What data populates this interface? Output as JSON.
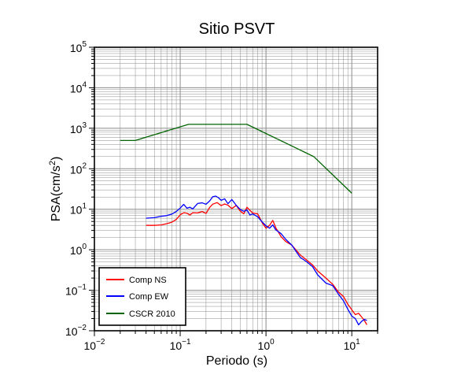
{
  "chart_data": {
    "type": "line",
    "title": "Sitio PSVT",
    "xlabel": "Periodo (s)",
    "ylabel_main": "PSA(cm/s",
    "ylabel_sup": "2",
    "ylabel_close": ")",
    "x_scale": "log",
    "y_scale": "log",
    "xlim": [
      0.01,
      20
    ],
    "ylim": [
      0.01,
      100000
    ],
    "grid": true,
    "legend_position": "bottom-left",
    "x_ticks": [
      {
        "value": 0.01,
        "base": "10",
        "exp": "−2"
      },
      {
        "value": 0.1,
        "base": "10",
        "exp": "−1"
      },
      {
        "value": 1,
        "base": "10",
        "exp": "0"
      },
      {
        "value": 10,
        "base": "10",
        "exp": "1"
      }
    ],
    "y_ticks": [
      {
        "value": 0.01,
        "base": "10",
        "exp": "−2"
      },
      {
        "value": 0.1,
        "base": "10",
        "exp": "−1"
      },
      {
        "value": 1,
        "base": "10",
        "exp": "0"
      },
      {
        "value": 10,
        "base": "10",
        "exp": "1"
      },
      {
        "value": 100,
        "base": "10",
        "exp": "2"
      },
      {
        "value": 1000,
        "base": "10",
        "exp": "3"
      },
      {
        "value": 10000,
        "base": "10",
        "exp": "4"
      },
      {
        "value": 100000,
        "base": "10",
        "exp": "5"
      }
    ],
    "series": [
      {
        "name": "Comp NS",
        "color": "#ff0000",
        "points": [
          [
            0.04,
            4.0
          ],
          [
            0.05,
            4.0
          ],
          [
            0.06,
            4.1
          ],
          [
            0.07,
            4.4
          ],
          [
            0.08,
            4.8
          ],
          [
            0.09,
            5.6
          ],
          [
            0.1,
            7.3
          ],
          [
            0.11,
            8.2
          ],
          [
            0.12,
            8.0
          ],
          [
            0.13,
            7.2
          ],
          [
            0.14,
            8.2
          ],
          [
            0.16,
            8.1
          ],
          [
            0.18,
            8.8
          ],
          [
            0.2,
            7.9
          ],
          [
            0.22,
            11.0
          ],
          [
            0.24,
            13.4
          ],
          [
            0.27,
            14.6
          ],
          [
            0.3,
            12.3
          ],
          [
            0.33,
            13.5
          ],
          [
            0.36,
            12.6
          ],
          [
            0.4,
            10.4
          ],
          [
            0.45,
            12.4
          ],
          [
            0.5,
            9.1
          ],
          [
            0.55,
            7.7
          ],
          [
            0.6,
            11.2
          ],
          [
            0.65,
            9.4
          ],
          [
            0.7,
            8.1
          ],
          [
            0.8,
            7.7
          ],
          [
            0.9,
            4.7
          ],
          [
            1.0,
            3.4
          ],
          [
            1.1,
            4.0
          ],
          [
            1.2,
            5.3
          ],
          [
            1.3,
            3.5
          ],
          [
            1.5,
            2.1
          ],
          [
            1.7,
            1.6
          ],
          [
            2.0,
            1.3
          ],
          [
            2.5,
            0.75
          ],
          [
            3.0,
            0.55
          ],
          [
            3.5,
            0.42
          ],
          [
            4.0,
            0.3
          ],
          [
            5.0,
            0.2
          ],
          [
            6.0,
            0.14
          ],
          [
            7.0,
            0.09
          ],
          [
            8.0,
            0.07
          ],
          [
            9.0,
            0.045
          ],
          [
            10.0,
            0.033
          ],
          [
            11.0,
            0.025
          ],
          [
            12.0,
            0.027
          ],
          [
            13.0,
            0.022
          ],
          [
            14.0,
            0.018
          ],
          [
            15.0,
            0.014
          ]
        ]
      },
      {
        "name": "Comp EW",
        "color": "#0000ff",
        "points": [
          [
            0.04,
            6.0
          ],
          [
            0.05,
            6.2
          ],
          [
            0.06,
            6.7
          ],
          [
            0.07,
            7.0
          ],
          [
            0.08,
            7.6
          ],
          [
            0.09,
            8.8
          ],
          [
            0.1,
            10.7
          ],
          [
            0.11,
            13.2
          ],
          [
            0.12,
            10.6
          ],
          [
            0.13,
            11.2
          ],
          [
            0.14,
            10.2
          ],
          [
            0.16,
            13.9
          ],
          [
            0.18,
            14.4
          ],
          [
            0.2,
            13.3
          ],
          [
            0.22,
            16.0
          ],
          [
            0.24,
            20.4
          ],
          [
            0.26,
            21.1
          ],
          [
            0.28,
            19.1
          ],
          [
            0.3,
            16.6
          ],
          [
            0.33,
            18.1
          ],
          [
            0.36,
            13.7
          ],
          [
            0.4,
            17.4
          ],
          [
            0.45,
            12.5
          ],
          [
            0.5,
            9.9
          ],
          [
            0.55,
            8.9
          ],
          [
            0.6,
            9.6
          ],
          [
            0.65,
            7.2
          ],
          [
            0.7,
            7.7
          ],
          [
            0.8,
            6.5
          ],
          [
            0.9,
            4.9
          ],
          [
            1.0,
            3.9
          ],
          [
            1.1,
            3.4
          ],
          [
            1.2,
            4.1
          ],
          [
            1.3,
            3.1
          ],
          [
            1.5,
            2.5
          ],
          [
            1.7,
            1.8
          ],
          [
            2.0,
            1.3
          ],
          [
            2.5,
            0.65
          ],
          [
            3.0,
            0.5
          ],
          [
            3.5,
            0.38
          ],
          [
            4.0,
            0.24
          ],
          [
            5.0,
            0.15
          ],
          [
            6.0,
            0.13
          ],
          [
            7.0,
            0.08
          ],
          [
            8.0,
            0.055
          ],
          [
            9.0,
            0.034
          ],
          [
            10.0,
            0.023
          ],
          [
            11.0,
            0.02
          ],
          [
            12.0,
            0.014
          ],
          [
            13.0,
            0.017
          ],
          [
            14.0,
            0.019
          ],
          [
            15.0,
            0.018
          ]
        ]
      },
      {
        "name": "CSCR 2010",
        "color": "#006400",
        "points": [
          [
            0.02,
            500
          ],
          [
            0.03,
            500
          ],
          [
            0.125,
            1250
          ],
          [
            0.6,
            1250
          ],
          [
            3.6,
            200
          ],
          [
            10.0,
            25
          ]
        ]
      }
    ]
  }
}
